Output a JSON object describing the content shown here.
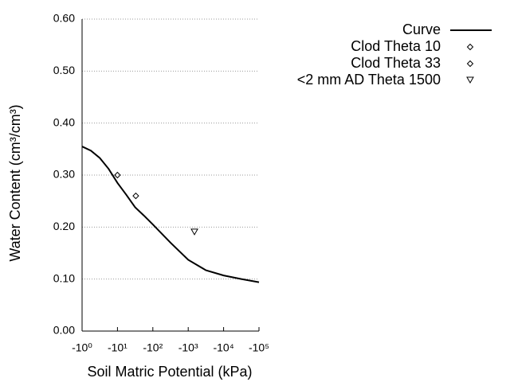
{
  "chart_data": {
    "type": "scatter",
    "xlabel": "Soil Matric Potential (kPa)",
    "ylabel": "Water Content (cm³/cm³)",
    "xscale": "log",
    "xlim": [
      -1,
      -100000
    ],
    "xticks": [
      {
        "value": -1,
        "label": "-10⁰"
      },
      {
        "value": -10,
        "label": "-10¹"
      },
      {
        "value": -100,
        "label": "-10²"
      },
      {
        "value": -1000,
        "label": "-10³"
      },
      {
        "value": -10000,
        "label": "-10⁴"
      },
      {
        "value": -100000,
        "label": "-10⁵"
      }
    ],
    "ylim": [
      0,
      0.6
    ],
    "yticks": [
      {
        "value": 0,
        "label": "0.00"
      },
      {
        "value": 0.1,
        "label": "0.10"
      },
      {
        "value": 0.2,
        "label": "0.20"
      },
      {
        "value": 0.3,
        "label": "0.30"
      },
      {
        "value": 0.4,
        "label": "0.40"
      },
      {
        "value": 0.5,
        "label": "0.50"
      },
      {
        "value": 0.6,
        "label": "0.60"
      }
    ],
    "grid": true,
    "legend": "upper right",
    "series": [
      {
        "name": "Curve",
        "type": "line",
        "color": "#000000",
        "x": [
          -1,
          -1.78,
          -3.16,
          -5.62,
          -10,
          -17.8,
          -31.6,
          -56.2,
          -100,
          -316,
          -1000,
          -3162,
          -10000,
          -31623,
          -100000
        ],
        "values": [
          0.355,
          0.347,
          0.333,
          0.312,
          0.285,
          0.262,
          0.238,
          0.222,
          0.205,
          0.17,
          0.137,
          0.117,
          0.107,
          0.1,
          0.094
        ]
      },
      {
        "name": "Clod Theta 10",
        "type": "scatter",
        "marker": "diamond",
        "color": "#000000",
        "x": [
          -10
        ],
        "values": [
          0.3
        ]
      },
      {
        "name": "Clod Theta 33",
        "type": "scatter",
        "marker": "diamond",
        "color": "#000000",
        "x": [
          -33
        ],
        "values": [
          0.26
        ]
      },
      {
        "name": "<2 mm AD Theta 1500",
        "type": "scatter",
        "marker": "triangle-down",
        "color": "#000000",
        "x": [
          -1500
        ],
        "values": [
          0.19
        ]
      }
    ]
  }
}
